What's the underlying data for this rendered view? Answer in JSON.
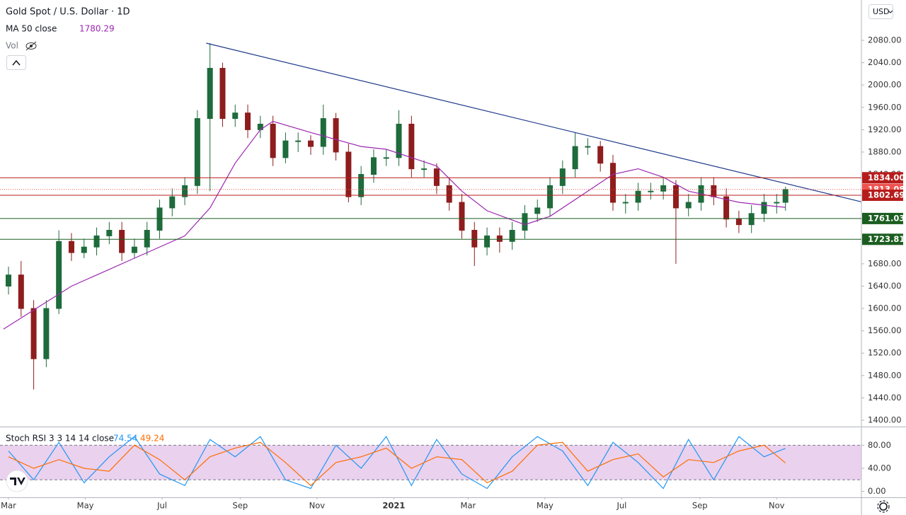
{
  "currency": "USD",
  "chart_data": [
    {
      "type": "candlestick",
      "title": "Gold Spot / U.S. Dollar · 1D",
      "volume_label": "Vol",
      "x": [
        0,
        10,
        20,
        30,
        40,
        50,
        60,
        70,
        80,
        90,
        100,
        110,
        120,
        130,
        140,
        150,
        160,
        170,
        180,
        190,
        200,
        210,
        220,
        230,
        240,
        250,
        260,
        270,
        280,
        290,
        300,
        310,
        320,
        330,
        340,
        350,
        360,
        370,
        380,
        390,
        400,
        410,
        420,
        430,
        440,
        450,
        460,
        470,
        480,
        490,
        500,
        510,
        520,
        530,
        540,
        550,
        560,
        570,
        580,
        590,
        600,
        610,
        617
      ],
      "open": [
        1640,
        1660,
        1600,
        1510,
        1600,
        1720,
        1700,
        1710,
        1730,
        1740,
        1700,
        1710,
        1740,
        1780,
        1800,
        1820,
        1940,
        2030,
        1940,
        1950,
        1920,
        1930,
        1870,
        1900,
        1900,
        1890,
        1940,
        1880,
        1800,
        1840,
        1870,
        1870,
        1930,
        1850,
        1850,
        1820,
        1790,
        1740,
        1710,
        1730,
        1720,
        1740,
        1770,
        1780,
        1820,
        1850,
        1890,
        1890,
        1860,
        1790,
        1790,
        1810,
        1810,
        1820,
        1780,
        1790,
        1820,
        1800,
        1760,
        1750,
        1770,
        1790,
        1790
      ],
      "high": [
        1675,
        1685,
        1615,
        1615,
        1740,
        1735,
        1725,
        1745,
        1755,
        1755,
        1725,
        1755,
        1795,
        1815,
        1835,
        1955,
        2075,
        2040,
        1965,
        1965,
        1945,
        1945,
        1915,
        1915,
        1910,
        1965,
        1950,
        1895,
        1855,
        1885,
        1885,
        1955,
        1945,
        1865,
        1860,
        1835,
        1805,
        1755,
        1745,
        1745,
        1755,
        1785,
        1795,
        1835,
        1865,
        1915,
        1905,
        1900,
        1875,
        1805,
        1825,
        1825,
        1835,
        1830,
        1805,
        1835,
        1835,
        1815,
        1775,
        1785,
        1805,
        1805,
        1818
      ],
      "low": [
        1625,
        1585,
        1455,
        1495,
        1590,
        1685,
        1690,
        1695,
        1715,
        1685,
        1690,
        1695,
        1725,
        1765,
        1785,
        1805,
        1810,
        1925,
        1925,
        1905,
        1905,
        1855,
        1860,
        1880,
        1875,
        1875,
        1865,
        1790,
        1785,
        1825,
        1855,
        1855,
        1835,
        1835,
        1805,
        1775,
        1725,
        1676,
        1695,
        1700,
        1705,
        1725,
        1755,
        1765,
        1805,
        1835,
        1875,
        1845,
        1775,
        1770,
        1775,
        1795,
        1795,
        1680,
        1765,
        1775,
        1785,
        1745,
        1735,
        1735,
        1755,
        1770,
        1775
      ],
      "close": [
        1660,
        1600,
        1510,
        1600,
        1720,
        1700,
        1710,
        1730,
        1740,
        1700,
        1710,
        1740,
        1780,
        1800,
        1820,
        1940,
        2030,
        1940,
        1950,
        1920,
        1930,
        1870,
        1900,
        1900,
        1890,
        1940,
        1880,
        1800,
        1840,
        1870,
        1870,
        1930,
        1850,
        1850,
        1820,
        1790,
        1740,
        1710,
        1730,
        1720,
        1740,
        1770,
        1780,
        1820,
        1850,
        1890,
        1890,
        1860,
        1790,
        1790,
        1810,
        1810,
        1820,
        1780,
        1790,
        1820,
        1800,
        1760,
        1750,
        1770,
        1790,
        1790,
        1813
      ],
      "up_color": "#1e6b3c",
      "down_color": "#8e1d1d",
      "indicator": {
        "name": "MA 50 close",
        "last_value": 1780.29,
        "color": "#9c27b0",
        "x": [
          -4,
          50,
          100,
          140,
          160,
          180,
          200,
          210,
          240,
          280,
          300,
          320,
          340,
          360,
          380,
          410,
          430,
          460,
          480,
          500,
          520,
          540,
          560,
          580,
          600,
          617
        ],
        "values": [
          1563,
          1640,
          1690,
          1730,
          1780,
          1860,
          1920,
          1935,
          1915,
          1890,
          1885,
          1870,
          1855,
          1810,
          1775,
          1750,
          1765,
          1810,
          1840,
          1850,
          1835,
          1810,
          1800,
          1790,
          1785,
          1781
        ]
      },
      "levels": {
        "values": [
          1834.0,
          1813.08,
          1802.69,
          1761.03,
          1723.81
        ],
        "value_labels": [
          "1834.00",
          "1813.08",
          "1802.69",
          "1761.03",
          "1723.81"
        ],
        "colors": [
          "#b71c1c",
          "#ef5350",
          "#b71c1c",
          "#1b5e20",
          "#1b5e20"
        ]
      },
      "trendline": {
        "x": [
          157,
          677
        ],
        "values": [
          2075,
          1791
        ],
        "color": "#1e3a8a"
      },
      "xlim": [
        -6.75,
        677.3
      ],
      "xticks": [
        {
          "value": 0,
          "label": "Mar"
        },
        {
          "value": 61,
          "label": "May"
        },
        {
          "value": 122,
          "label": "Jul"
        },
        {
          "value": 184,
          "label": "Sep"
        },
        {
          "value": 245,
          "label": "Nov"
        },
        {
          "value": 306,
          "label": "2021"
        },
        {
          "value": 365,
          "label": "Mar"
        },
        {
          "value": 426,
          "label": "May"
        },
        {
          "value": 487,
          "label": "Jul"
        },
        {
          "value": 549,
          "label": "Sep"
        },
        {
          "value": 610,
          "label": "Nov"
        }
      ],
      "ylim": [
        1388.6,
        2152.2
      ],
      "yticks": [
        {
          "value": 1400,
          "label": "1400.00"
        },
        {
          "value": 1440,
          "label": "1440.00"
        },
        {
          "value": 1480,
          "label": "1480.00"
        },
        {
          "value": 1520,
          "label": "1520.00"
        },
        {
          "value": 1560,
          "label": "1560.00"
        },
        {
          "value": 1600,
          "label": "1600.00"
        },
        {
          "value": 1640,
          "label": "1640.00"
        },
        {
          "value": 1680,
          "label": "1680.00"
        },
        {
          "value": 1720,
          "label": "1720.00"
        },
        {
          "value": 1760,
          "label": "1760.00"
        },
        {
          "value": 1800,
          "label": "1800.00"
        },
        {
          "value": 1840,
          "label": "1840.00"
        },
        {
          "value": 1880,
          "label": "1880.00"
        },
        {
          "value": 1920,
          "label": "1920.00"
        },
        {
          "value": 1960,
          "label": "1960.00"
        },
        {
          "value": 2000,
          "label": "2000.00"
        },
        {
          "value": 2040,
          "label": "2040.00"
        },
        {
          "value": 2080,
          "label": "2080.00"
        }
      ]
    },
    {
      "type": "line",
      "title": "Stoch RSI 3 3 14 14 close",
      "x": [
        0,
        20,
        40,
        60,
        80,
        100,
        120,
        140,
        160,
        180,
        200,
        220,
        240,
        260,
        280,
        300,
        320,
        340,
        360,
        380,
        400,
        420,
        440,
        460,
        480,
        500,
        520,
        540,
        560,
        580,
        600,
        617
      ],
      "series": [
        {
          "color": "#2196f3",
          "last_value": 74.54,
          "values": [
            70,
            20,
            85,
            15,
            60,
            95,
            30,
            10,
            90,
            60,
            95,
            20,
            5,
            80,
            40,
            95,
            10,
            90,
            30,
            5,
            60,
            95,
            70,
            10,
            85,
            50,
            5,
            90,
            20,
            95,
            60,
            74.54
          ]
        },
        {
          "color": "#ff6d00",
          "last_value": 49.24,
          "values": [
            60,
            40,
            55,
            40,
            35,
            80,
            55,
            20,
            60,
            75,
            85,
            50,
            10,
            50,
            60,
            75,
            40,
            60,
            55,
            15,
            35,
            80,
            85,
            35,
            55,
            65,
            25,
            55,
            50,
            70,
            80,
            49.24
          ]
        }
      ],
      "band": [
        20,
        80
      ],
      "band_color": "#e1bee7",
      "ylim": [
        -10.3,
        112.3
      ],
      "yticks": [
        {
          "value": 0,
          "label": "0.00"
        },
        {
          "value": 40,
          "label": "40.00"
        },
        {
          "value": 80,
          "label": "80.00"
        }
      ]
    }
  ]
}
